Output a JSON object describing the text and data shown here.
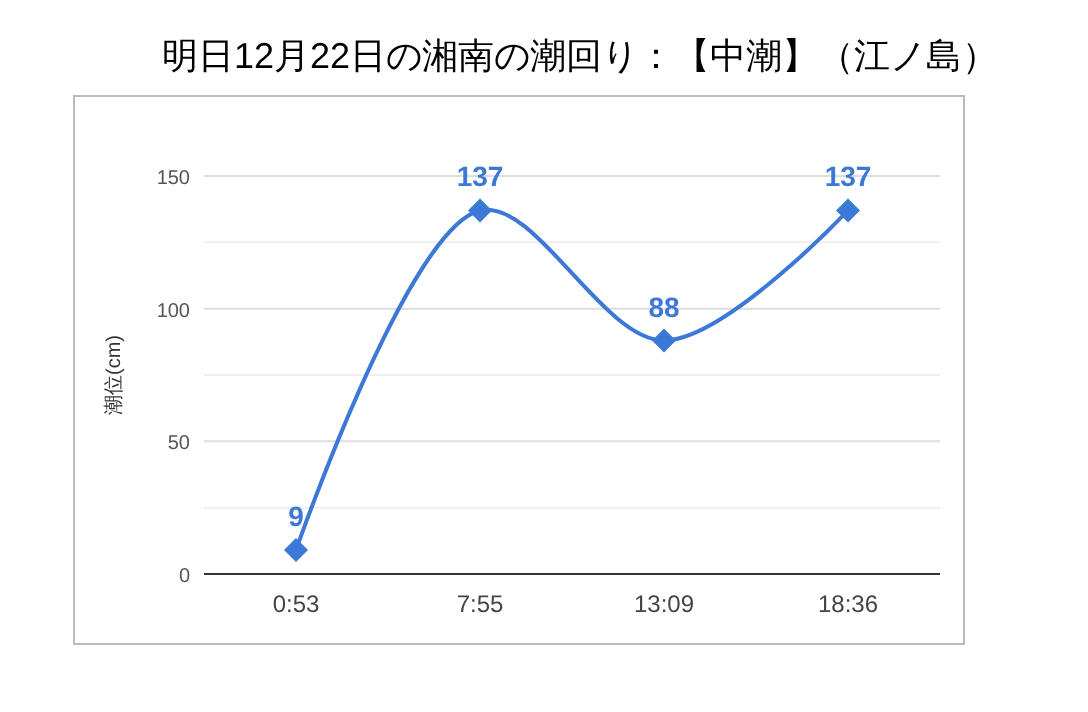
{
  "chart_data": {
    "type": "line",
    "title": "明日12月22日の湘南の潮回り：【中潮】（江ノ島）",
    "ylabel": "潮位(cm)",
    "categories": [
      "0:53",
      "7:55",
      "13:09",
      "18:36"
    ],
    "series": [
      {
        "color": "#3c78d8",
        "values": [
          9,
          137,
          88,
          137
        ]
      }
    ],
    "ylim": [
      0,
      150
    ],
    "yticks": [
      0,
      {
        "value": 25,
        "label": null
      },
      50,
      {
        "value": 75,
        "label": null
      },
      100,
      {
        "value": 125,
        "label": null
      },
      150
    ],
    "grid": "y",
    "marker": "diamond",
    "line_style": "solid",
    "data_labels": true
  }
}
